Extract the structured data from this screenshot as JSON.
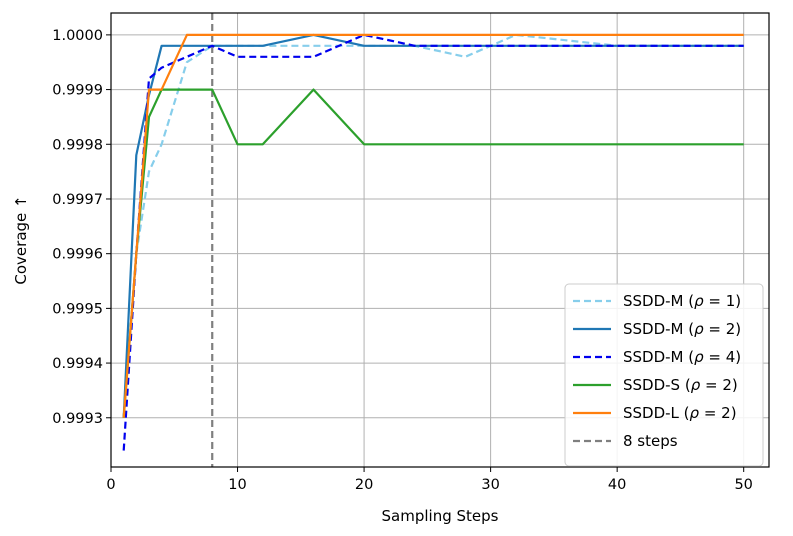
{
  "chart_data": {
    "type": "line",
    "xlabel": "Sampling Steps",
    "ylabel": "Coverage ↑",
    "xlim": [
      0,
      52
    ],
    "ylim": [
      0.99921,
      1.00004
    ],
    "xticks": [
      0,
      10,
      20,
      30,
      40,
      50
    ],
    "yticks": [
      0.9993,
      0.9994,
      0.9995,
      0.9996,
      0.9997,
      0.9998,
      0.9999,
      1.0
    ],
    "xtick_labels": [
      "0",
      "10",
      "20",
      "30",
      "40",
      "50"
    ],
    "ytick_labels": [
      "0.9993",
      "0.9994",
      "0.9995",
      "0.9996",
      "0.9997",
      "0.9998",
      "0.9999",
      "1.0000"
    ],
    "grid": true,
    "legend_position": "lower right",
    "vline": {
      "x": 8,
      "label": "8 steps",
      "color": "#7f7f7f",
      "style": "dashed"
    },
    "series": [
      {
        "name": "SSDD-M (ρ=1)",
        "name_parts": [
          "SSDD-M (",
          "ρ",
          " = 1)"
        ],
        "color": "#87ceeb",
        "style": "dashed",
        "x": [
          1,
          2,
          3,
          4,
          6,
          8,
          10,
          12,
          16,
          20,
          24,
          28,
          32,
          40,
          50
        ],
        "y": [
          0.9993,
          0.9996,
          0.99975,
          0.9998,
          0.99995,
          0.99998,
          0.99998,
          0.99998,
          0.99998,
          0.99998,
          0.99998,
          0.99996,
          1.0,
          0.99998,
          0.99998
        ]
      },
      {
        "name": "SSDD-M (ρ=2)",
        "name_parts": [
          "SSDD-M (",
          "ρ",
          " = 2)"
        ],
        "color": "#1f77b4",
        "style": "solid",
        "x": [
          1,
          2,
          3,
          4,
          6,
          8,
          10,
          12,
          16,
          20,
          24,
          28,
          32,
          40,
          50
        ],
        "y": [
          0.9993,
          0.99978,
          0.99989,
          0.99998,
          0.99998,
          0.99998,
          0.99998,
          0.99998,
          1.0,
          0.99998,
          0.99998,
          0.99998,
          0.99998,
          0.99998,
          0.99998
        ]
      },
      {
        "name": "SSDD-M (ρ=4)",
        "name_parts": [
          "SSDD-M (",
          "ρ",
          " = 4)"
        ],
        "color": "#0000ee",
        "style": "dashed",
        "x": [
          1,
          2,
          3,
          4,
          6,
          8,
          10,
          12,
          16,
          20,
          24,
          28,
          32,
          40,
          50
        ],
        "y": [
          0.99924,
          0.9996,
          0.99992,
          0.99994,
          0.99996,
          0.99998,
          0.99996,
          0.99996,
          0.99996,
          1.0,
          0.99998,
          0.99998,
          0.99998,
          0.99998,
          0.99998
        ]
      },
      {
        "name": "SSDD-S (ρ=2)",
        "name_parts": [
          "SSDD-S (",
          "ρ",
          " = 2)"
        ],
        "color": "#2ca02c",
        "style": "solid",
        "x": [
          1,
          2,
          3,
          4,
          6,
          8,
          10,
          12,
          16,
          20,
          24,
          28,
          32,
          40,
          50
        ],
        "y": [
          0.9993,
          0.9996,
          0.99985,
          0.9999,
          0.9999,
          0.9999,
          0.9998,
          0.9998,
          0.9999,
          0.9998,
          0.9998,
          0.9998,
          0.9998,
          0.9998,
          0.9998
        ]
      },
      {
        "name": "SSDD-L (ρ=2)",
        "name_parts": [
          "SSDD-L (",
          "ρ",
          " = 2)"
        ],
        "color": "#ff7f0e",
        "style": "solid",
        "x": [
          1,
          2,
          3,
          4,
          6,
          8,
          10,
          12,
          16,
          20,
          24,
          28,
          32,
          40,
          50
        ],
        "y": [
          0.9993,
          0.9996,
          0.9999,
          0.9999,
          1.0,
          1.0,
          1.0,
          1.0,
          1.0,
          1.0,
          1.0,
          1.0,
          1.0,
          1.0,
          1.0
        ]
      }
    ]
  }
}
